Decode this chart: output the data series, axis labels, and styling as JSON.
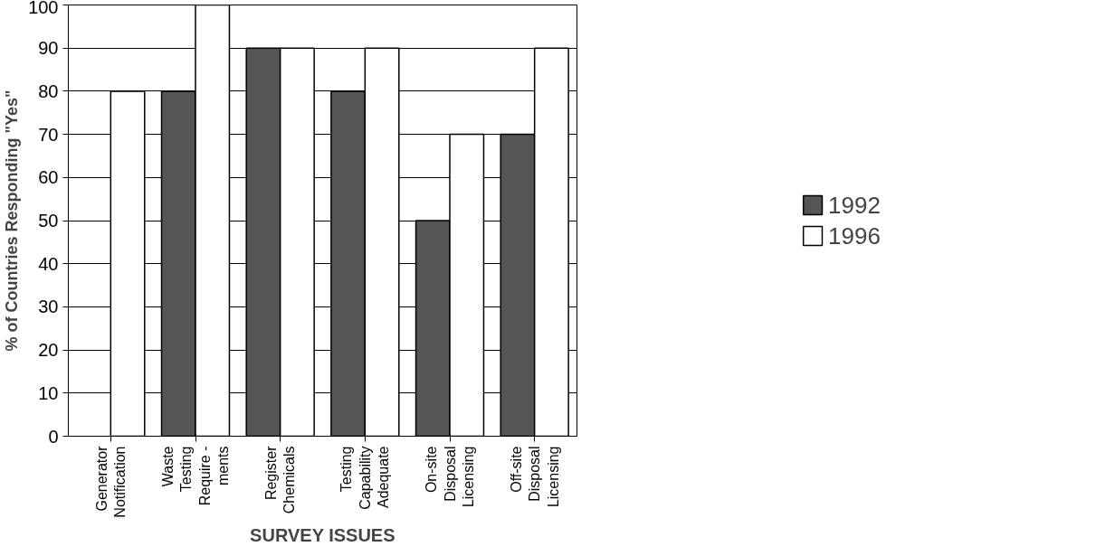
{
  "chart_data": {
    "type": "bar",
    "xlabel": "SURVEY ISSUES",
    "ylabel": "% of Countries Responding \"Yes\"",
    "categories": [
      "Generator\nNotification",
      "Waste\nTesting\nRequire -\nments",
      "Register\nChemicals",
      "Testing\nCapability\nAdequate",
      "On-site\nDisposal\nLicensing",
      "Off-site\nDisposal\nLicensing"
    ],
    "series": [
      {
        "name": "1992",
        "color": "#555555",
        "values": [
          null,
          80,
          90,
          80,
          50,
          70
        ]
      },
      {
        "name": "1996",
        "color": "#ffffff",
        "values": [
          80,
          100,
          90,
          90,
          70,
          90
        ]
      }
    ],
    "ylim": [
      0,
      100
    ],
    "yticks": [
      0,
      10,
      20,
      30,
      40,
      50,
      60,
      70,
      80,
      90,
      100
    ],
    "grid": "y",
    "legend": "right"
  }
}
